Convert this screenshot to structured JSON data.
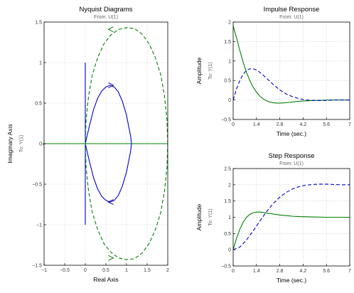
{
  "chart_data": [
    {
      "id": "nyquist",
      "type": "line",
      "title": "Nyquist Diagrams",
      "subtitle": "From: U(1)",
      "xlabel": "Real Axis",
      "ylabel": "Imaginary Axis",
      "output_label": "To: Y(1)",
      "xlim": [
        -1,
        2
      ],
      "ylim": [
        -1.5,
        1.5
      ],
      "xticks": [
        -1,
        -0.5,
        0,
        0.5,
        1,
        1.5,
        2
      ],
      "yticks": [
        -1.5,
        -1,
        -0.5,
        0,
        0.5,
        1,
        1.5
      ],
      "xtick_labels": [
        "−1",
        "−0.5",
        "0",
        "0.5",
        "1",
        "1.5",
        "2"
      ],
      "ytick_labels": [
        "−1.5",
        "−1",
        "−0.5",
        "0",
        "0.5",
        "1",
        "1.5"
      ],
      "grid": true,
      "colors": {
        "solid": "#0000cc",
        "dashed": "#008000"
      },
      "series": [
        {
          "style": "solid",
          "color": "#0000cc",
          "x": [
            0,
            0,
            null,
            0,
            0.1,
            0.2,
            0.3,
            0.4,
            0.5,
            0.6,
            0.7,
            0.8,
            0.9,
            1.0,
            1.05,
            1.1,
            1.12,
            1.1,
            1.05,
            1.0,
            0.9,
            0.8,
            0.7,
            0.6,
            0.5,
            0.4,
            0.3,
            0.2,
            0.1,
            0
          ],
          "y": [
            1.0,
            -1.0,
            null,
            0,
            0.22,
            0.42,
            0.56,
            0.65,
            0.7,
            0.72,
            0.7,
            0.64,
            0.52,
            0.35,
            0.22,
            0.09,
            0,
            -0.09,
            -0.22,
            -0.35,
            -0.52,
            -0.64,
            -0.7,
            -0.72,
            -0.7,
            -0.65,
            -0.56,
            -0.42,
            -0.22,
            0
          ]
        },
        {
          "style": "dashed",
          "color": "#008000",
          "x": [
            2.0,
            1.98,
            1.92,
            1.83,
            1.7,
            1.55,
            1.38,
            1.19,
            1.0,
            0.81,
            0.62,
            0.45,
            0.3,
            0.17,
            0.08,
            0.02,
            0,
            0.02,
            0.08,
            0.17,
            0.3,
            0.45,
            0.62,
            0.81,
            1.0,
            1.19,
            1.38,
            1.55,
            1.7,
            1.83,
            1.92,
            1.98,
            2.0
          ],
          "y": [
            0,
            0.3,
            0.59,
            0.85,
            1.06,
            1.23,
            1.35,
            1.42,
            1.43,
            1.41,
            1.34,
            1.23,
            1.06,
            0.85,
            0.59,
            0.3,
            0,
            -0.3,
            -0.59,
            -0.85,
            -1.06,
            -1.23,
            -1.34,
            -1.41,
            -1.43,
            -1.42,
            -1.35,
            -1.23,
            -1.06,
            -0.85,
            -0.59,
            -0.3,
            0
          ]
        },
        {
          "style": "solid",
          "color": "#008000",
          "x": [
            -1,
            2
          ],
          "y": [
            0,
            0
          ]
        }
      ]
    },
    {
      "id": "impulse",
      "type": "line",
      "title": "Impulse Response",
      "subtitle": "From: U(1)",
      "xlabel": "Time (sec.)",
      "ylabel": "Amplitude",
      "output_label": "To: Y(1)",
      "xlim": [
        0,
        7
      ],
      "ylim": [
        -0.5,
        2
      ],
      "xticks": [
        0,
        1.4,
        2.8,
        4.2,
        5.6,
        7
      ],
      "yticks": [
        -0.5,
        0,
        0.5,
        1,
        1.5,
        2
      ],
      "xtick_labels": [
        "0",
        "1.4",
        "2.8",
        "4.2",
        "5.6",
        "7"
      ],
      "ytick_labels": [
        "−0.5",
        "0",
        "0.5",
        "1",
        "1.5",
        "2"
      ],
      "grid": true,
      "series": [
        {
          "style": "solid",
          "color": "#008000",
          "x": [
            0,
            0.2,
            0.4,
            0.6,
            0.8,
            1.0,
            1.2,
            1.4,
            1.6,
            1.8,
            2.0,
            2.2,
            2.4,
            2.6,
            2.8,
            3.0,
            3.4,
            3.8,
            4.2,
            5.0,
            6.0,
            7.0
          ],
          "y": [
            1.9,
            1.6,
            1.27,
            0.97,
            0.71,
            0.5,
            0.33,
            0.2,
            0.1,
            0.03,
            -0.02,
            -0.05,
            -0.07,
            -0.08,
            -0.08,
            -0.075,
            -0.06,
            -0.04,
            -0.025,
            -0.01,
            0,
            0
          ]
        },
        {
          "style": "dashed",
          "color": "#0000cc",
          "x": [
            0,
            0.2,
            0.4,
            0.6,
            0.8,
            1.0,
            1.2,
            1.4,
            1.6,
            1.8,
            2.0,
            2.4,
            2.8,
            3.2,
            3.6,
            4.0,
            4.4,
            4.8,
            5.2,
            5.6,
            6.0,
            6.5,
            7.0
          ],
          "y": [
            0,
            0.28,
            0.5,
            0.66,
            0.76,
            0.8,
            0.8,
            0.77,
            0.71,
            0.64,
            0.56,
            0.4,
            0.26,
            0.15,
            0.08,
            0.03,
            0,
            -0.01,
            -0.015,
            -0.01,
            0,
            0,
            0
          ]
        }
      ]
    },
    {
      "id": "step",
      "type": "line",
      "title": "Step Response",
      "subtitle": "From: U(1)",
      "xlabel": "Time (sec.)",
      "ylabel": "Amplitude",
      "output_label": "To: Y(1)",
      "xlim": [
        0,
        7
      ],
      "ylim": [
        -0.5,
        2.5
      ],
      "xticks": [
        0,
        1.4,
        2.8,
        4.2,
        5.6,
        7
      ],
      "yticks": [
        -0.5,
        0,
        0.5,
        1,
        1.5,
        2,
        2.5
      ],
      "xtick_labels": [
        "0",
        "1.4",
        "2.8",
        "4.2",
        "5.6",
        "7"
      ],
      "ytick_labels": [
        "−0.5",
        "0",
        "0.5",
        "1",
        "1.5",
        "2",
        "2.5"
      ],
      "grid": true,
      "series": [
        {
          "style": "solid",
          "color": "#008000",
          "x": [
            0,
            0.2,
            0.4,
            0.6,
            0.8,
            1.0,
            1.2,
            1.4,
            1.6,
            1.8,
            2.0,
            2.4,
            2.8,
            3.2,
            3.6,
            4.0,
            4.8,
            5.6,
            6.4,
            7.0
          ],
          "y": [
            0,
            0.35,
            0.63,
            0.85,
            1.0,
            1.09,
            1.14,
            1.16,
            1.16,
            1.15,
            1.13,
            1.1,
            1.07,
            1.05,
            1.03,
            1.02,
            1.01,
            1.0,
            1.0,
            1.0
          ]
        },
        {
          "style": "dashed",
          "color": "#0000cc",
          "x": [
            0,
            0.4,
            0.8,
            1.2,
            1.6,
            2.0,
            2.4,
            2.8,
            3.2,
            3.6,
            4.0,
            4.4,
            4.8,
            5.2,
            5.6,
            6.0,
            6.5,
            7.0
          ],
          "y": [
            0,
            0.08,
            0.3,
            0.58,
            0.88,
            1.17,
            1.42,
            1.62,
            1.77,
            1.88,
            1.95,
            1.99,
            2.01,
            2.02,
            2.02,
            2.01,
            2.0,
            2.0
          ]
        }
      ]
    }
  ]
}
